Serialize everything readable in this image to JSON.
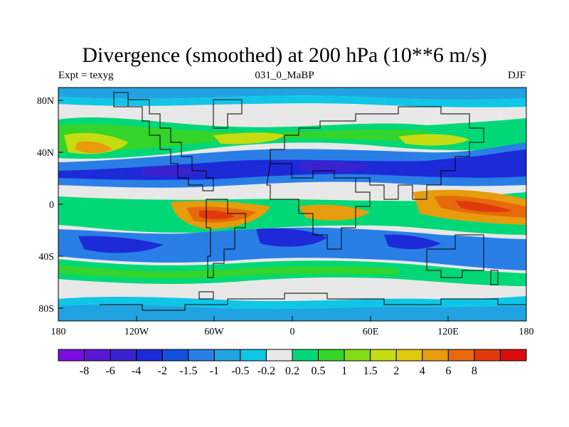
{
  "title": "Divergence (smoothed) at 200 hPa (10**6 m/s)",
  "subtitle_left": "Expt = texyg",
  "subtitle_center": "031_0_MaBP",
  "subtitle_right": "DJF",
  "x_ticks": [
    "180",
    "120W",
    "60W",
    "0",
    "60E",
    "120E",
    "180"
  ],
  "y_ticks": [
    "80N",
    "40N",
    "0",
    "40S",
    "80S"
  ],
  "colorbar": {
    "colors": [
      "#7c0ce0",
      "#5a17d8",
      "#3b22cf",
      "#1d2ad8",
      "#1550e0",
      "#2a7fe6",
      "#20a3e0",
      "#10c6e6",
      "#e8e8e8",
      "#00d878",
      "#34d42a",
      "#84dc14",
      "#c4dc10",
      "#e0c80c",
      "#e69c0c",
      "#e66a0c",
      "#e03a0c",
      "#dc0c0c"
    ],
    "labels": [
      "-8",
      "-6",
      "-4",
      "-2",
      "-1.5",
      "-1",
      "-0.5",
      "-0.2",
      "0.2",
      "0.5",
      "1",
      "1.5",
      "2",
      "4",
      "6",
      "8"
    ]
  }
}
